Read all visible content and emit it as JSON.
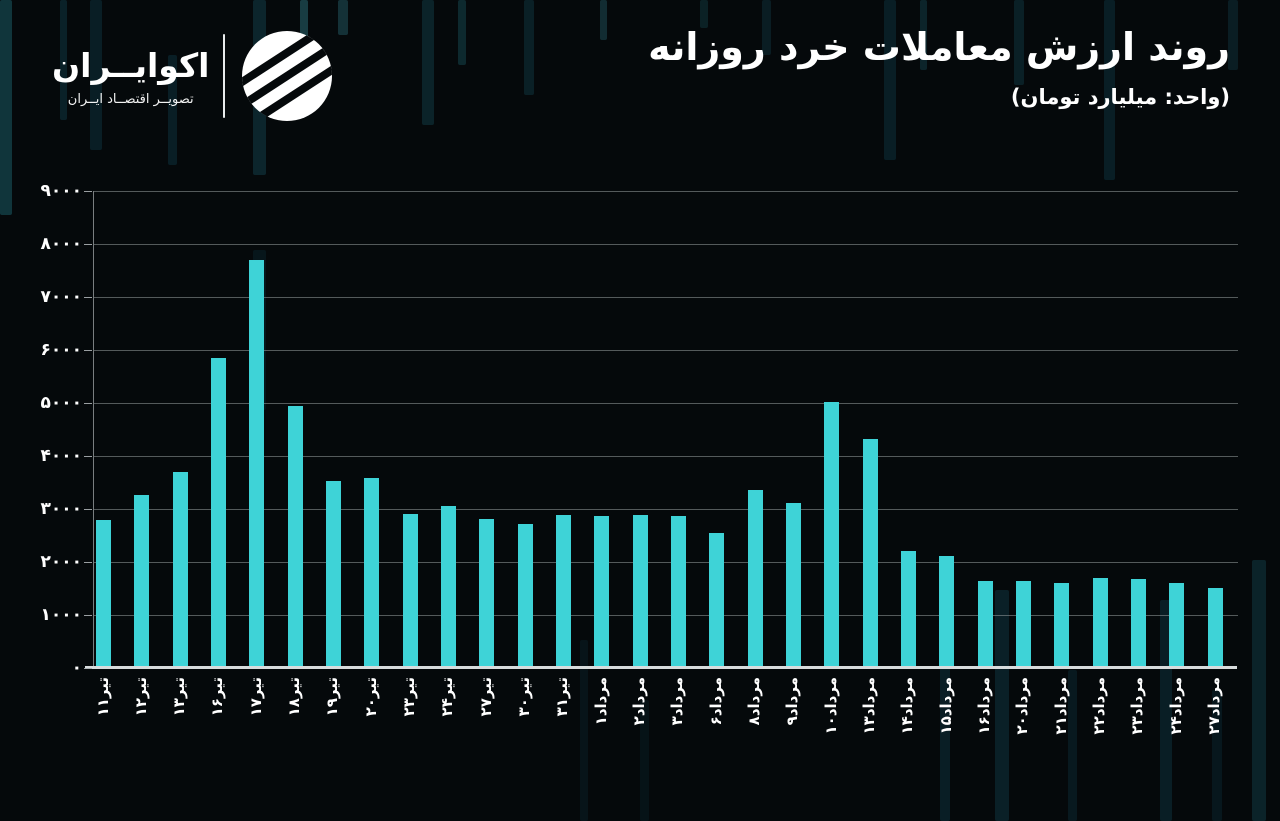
{
  "header": {
    "logo": {
      "name": "اکوایــران",
      "tagline": "تصویــر اقتصــاد ایــران"
    },
    "title": "روند ارزش معاملات خرد روزانه",
    "subtitle": "(واحد: میلیارد تومان)"
  },
  "chart_data": {
    "type": "bar",
    "title": "روند ارزش معاملات خرد روزانه",
    "unit_label": "(واحد: میلیارد تومان)",
    "categories": [
      "تیر۱۱",
      "تیر۱۲",
      "تیر۱۳",
      "تیر۱۶",
      "تیر۱۷",
      "تیر۱۸",
      "تیر۱۹",
      "تیر۲۰",
      "تیر۲۳",
      "تیر۲۴",
      "تیر۲۷",
      "تیر۳۰",
      "تیر۳۱",
      "مرداد۱",
      "مرداد۲",
      "مرداد۳",
      "مرداد۶",
      "مرداد۸",
      "مرداد۹",
      "مرداد۱۰",
      "مرداد۱۳",
      "مرداد۱۴",
      "مرداد۱۵",
      "مرداد۱۶",
      "مرداد۲۰",
      "مرداد۲۱",
      "مرداد۲۲",
      "مرداد۲۳",
      "مرداد۲۴",
      "مرداد۲۷"
    ],
    "values": [
      2790,
      3270,
      3700,
      5850,
      7700,
      4950,
      3530,
      3590,
      2910,
      3060,
      2820,
      2710,
      2880,
      2870,
      2880,
      2870,
      2540,
      3350,
      3110,
      5020,
      4330,
      2210,
      2120,
      1650,
      1640,
      1600,
      1690,
      1670,
      1600,
      1510
    ],
    "ylim": [
      0,
      9000
    ],
    "ytick_step": 1000,
    "ytick_labels": [
      "۰",
      "۱۰۰۰",
      "۲۰۰۰",
      "۳۰۰۰",
      "۴۰۰۰",
      "۵۰۰۰",
      "۶۰۰۰",
      "۷۰۰۰",
      "۸۰۰۰",
      "۹۰۰۰"
    ],
    "grid": true,
    "legend": false,
    "bar_color": "#3ed3d7",
    "background_color": "#05090b",
    "text_color": "#ffffff"
  }
}
